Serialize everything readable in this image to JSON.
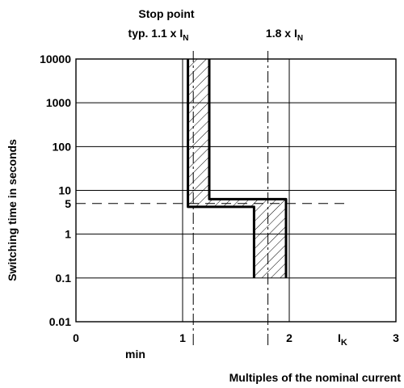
{
  "chart_data": {
    "type": "area",
    "title": "",
    "xlabel": "Multiples of the nominal current",
    "ylabel": "Switching time in seconds",
    "x_symbol": "I",
    "x_symbol_sub": "K",
    "min_label": "min",
    "xlim": [
      0,
      3
    ],
    "ylim": [
      0.01,
      10000
    ],
    "y_scale": "log",
    "grid": true,
    "x_ticks": [
      "0",
      "1",
      "2",
      "3"
    ],
    "x_tick_values": [
      0,
      1,
      2,
      3
    ],
    "y_ticks": [
      "0.01",
      "0.1",
      "1",
      "5",
      "10",
      "100",
      "1000",
      "10000"
    ],
    "y_tick_values": [
      0.01,
      0.1,
      1,
      5,
      10,
      100,
      1000,
      10000
    ],
    "annotations": [
      {
        "line1": "Stop point",
        "line2": "typ. 1.1 x I",
        "sub": "N",
        "x": 1.1
      },
      {
        "line1": "",
        "line2": "1.8 x I",
        "sub": "N",
        "x": 1.8
      }
    ],
    "reference_time": 5,
    "tripping_band": {
      "lower_boundary": [
        [
          1.05,
          10000
        ],
        [
          1.05,
          4.2
        ],
        [
          1.67,
          4.2
        ],
        [
          1.67,
          0.1
        ]
      ],
      "upper_boundary": [
        [
          1.25,
          10000
        ],
        [
          1.25,
          6.3
        ],
        [
          1.97,
          6.3
        ],
        [
          1.97,
          0.1
        ]
      ]
    }
  }
}
